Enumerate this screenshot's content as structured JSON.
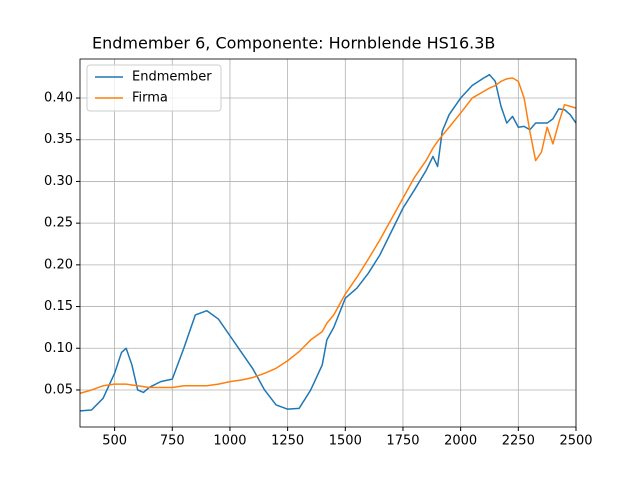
{
  "chart_data": {
    "type": "line",
    "title": "Endmember 6, Componente: Hornblende HS16.3B",
    "x": [
      350,
      400,
      450,
      500,
      530,
      550,
      575,
      600,
      625,
      650,
      700,
      750,
      800,
      850,
      900,
      950,
      1000,
      1050,
      1100,
      1150,
      1200,
      1250,
      1300,
      1350,
      1400,
      1420,
      1450,
      1500,
      1550,
      1600,
      1650,
      1700,
      1750,
      1800,
      1850,
      1880,
      1900,
      1920,
      1950,
      2000,
      2050,
      2100,
      2125,
      2150,
      2175,
      2200,
      2225,
      2250,
      2275,
      2300,
      2325,
      2350,
      2375,
      2400,
      2425,
      2450,
      2475,
      2500
    ],
    "series": [
      {
        "name": "Endmember",
        "color": "#1f77b4",
        "values": [
          0.025,
          0.026,
          0.04,
          0.07,
          0.095,
          0.1,
          0.08,
          0.05,
          0.047,
          0.053,
          0.06,
          0.063,
          0.1,
          0.14,
          0.145,
          0.135,
          0.115,
          0.095,
          0.075,
          0.05,
          0.032,
          0.027,
          0.028,
          0.05,
          0.08,
          0.11,
          0.125,
          0.16,
          0.172,
          0.19,
          0.212,
          0.24,
          0.268,
          0.29,
          0.313,
          0.33,
          0.318,
          0.36,
          0.38,
          0.4,
          0.415,
          0.424,
          0.428,
          0.42,
          0.39,
          0.37,
          0.378,
          0.365,
          0.366,
          0.362,
          0.37,
          0.37,
          0.37,
          0.375,
          0.387,
          0.386,
          0.38,
          0.37
        ]
      },
      {
        "name": "Firma",
        "color": "#ff7f0e",
        "values": [
          0.046,
          0.05,
          0.055,
          0.057,
          0.057,
          0.057,
          0.056,
          0.055,
          0.054,
          0.053,
          0.053,
          0.053,
          0.055,
          0.055,
          0.055,
          0.057,
          0.06,
          0.062,
          0.065,
          0.07,
          0.076,
          0.085,
          0.096,
          0.11,
          0.12,
          0.13,
          0.14,
          0.165,
          0.185,
          0.207,
          0.23,
          0.255,
          0.28,
          0.305,
          0.325,
          0.34,
          0.348,
          0.355,
          0.365,
          0.382,
          0.4,
          0.408,
          0.412,
          0.415,
          0.42,
          0.423,
          0.424,
          0.42,
          0.4,
          0.36,
          0.325,
          0.335,
          0.365,
          0.345,
          0.37,
          0.392,
          0.39,
          0.388
        ]
      }
    ],
    "xlim": [
      350,
      2500
    ],
    "xticks": [
      500,
      750,
      1000,
      1250,
      1500,
      1750,
      2000,
      2250,
      2500
    ],
    "ylim": [
      0.0056,
      0.4468
    ],
    "yticks": [
      0.05,
      {
        "value": 0.1,
        "label": "0.10"
      },
      0.15,
      {
        "value": 0.2,
        "label": "0.20"
      },
      0.25,
      {
        "value": 0.3,
        "label": "0.30"
      },
      0.35,
      {
        "value": 0.4,
        "label": "0.40"
      }
    ],
    "grid": true,
    "legend": "upper-left"
  }
}
